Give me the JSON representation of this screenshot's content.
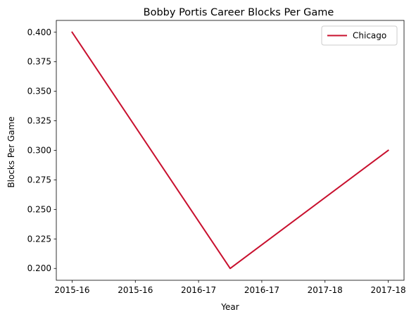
{
  "chart_data": {
    "type": "line",
    "title": "Bobby Portis Career Blocks Per Game",
    "xlabel": "Year",
    "ylabel": "Blocks Per Game",
    "x": [
      0,
      1,
      2
    ],
    "xlim": [
      -0.1,
      2.1
    ],
    "xticks": [
      0,
      0.4,
      0.8,
      1.2,
      1.6,
      2.0
    ],
    "xtick_labels": [
      "2015-16",
      "2015-16",
      "2016-17",
      "2016-17",
      "2017-18",
      "2017-18"
    ],
    "ylim": [
      0.19,
      0.41
    ],
    "yticks": [
      0.2,
      0.225,
      0.25,
      0.275,
      0.3,
      0.325,
      0.35,
      0.375,
      0.4
    ],
    "ytick_labels": [
      "0.200",
      "0.225",
      "0.250",
      "0.275",
      "0.300",
      "0.325",
      "0.350",
      "0.375",
      "0.400"
    ],
    "series": [
      {
        "name": "Chicago",
        "values": [
          0.4,
          0.2,
          0.3
        ],
        "color": "#C8102E"
      }
    ],
    "legend_position": "top-right",
    "grid": false
  }
}
